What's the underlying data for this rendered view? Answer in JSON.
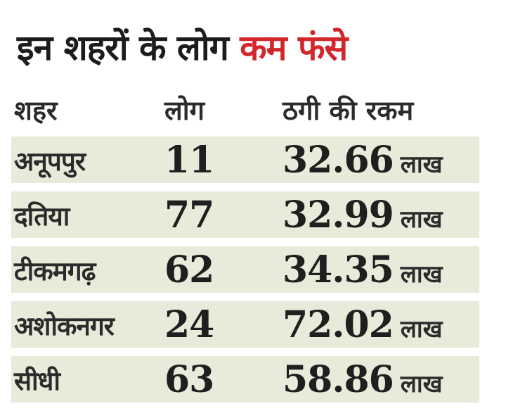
{
  "headline": {
    "part1": "इन शहरों के लोग ",
    "part2": "कम फंसे",
    "accent_color": "#d3262b"
  },
  "table": {
    "headers": {
      "city": "शहर",
      "people": "लोग",
      "amount": "ठगी की रकम"
    },
    "rows": [
      {
        "city": "अनूपपुर",
        "people": "11",
        "amount": "32.66",
        "unit": "लाख"
      },
      {
        "city": "दतिया",
        "people": "77",
        "amount": "32.99",
        "unit": "लाख"
      },
      {
        "city": "टीकमगढ़",
        "people": "62",
        "amount": "34.35",
        "unit": "लाख"
      },
      {
        "city": "अशोकनगर",
        "people": "24",
        "amount": "72.02",
        "unit": "लाख"
      },
      {
        "city": "सीधी",
        "people": "63",
        "amount": "58.86",
        "unit": "लाख"
      }
    ],
    "stripe_color": "#e9ead9"
  }
}
